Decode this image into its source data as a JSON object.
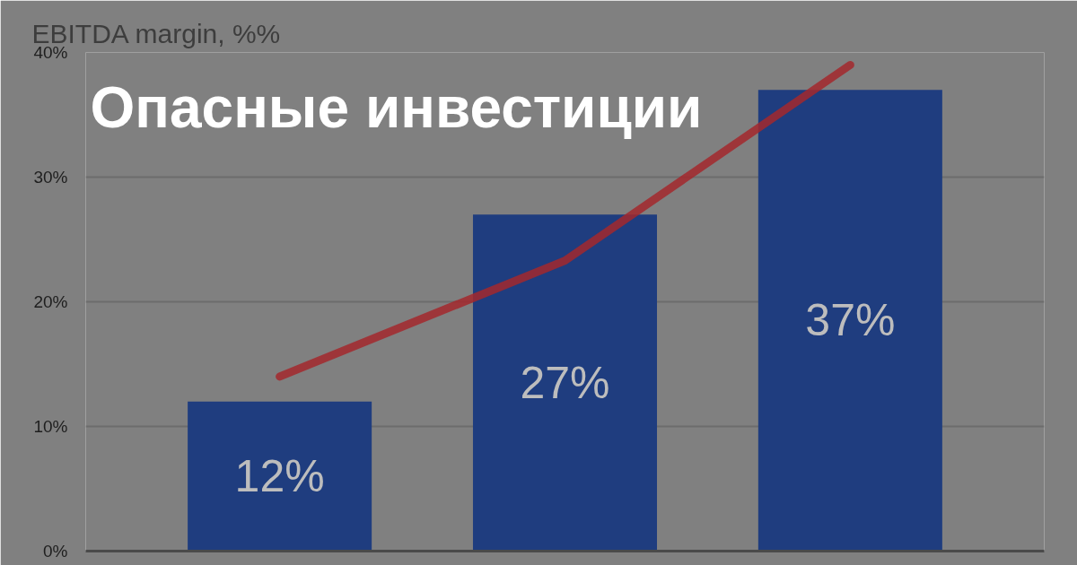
{
  "chart_data": {
    "type": "bar",
    "title": "EBITDA margin, %%",
    "annotations": [
      "Опасные инвестиции"
    ],
    "categories": [
      null,
      null,
      null
    ],
    "series": [
      {
        "color": "#1f3d7f",
        "values": [
          12,
          27,
          37
        ],
        "value_labels": [
          "12%",
          "27%",
          "37%"
        ]
      },
      {
        "type": "line",
        "color": "#a3282d",
        "values": [
          14.0,
          23.3,
          39.0
        ]
      }
    ],
    "ylim": [
      0,
      40
    ],
    "yticks": [
      {
        "value": 0,
        "label": "0%"
      },
      {
        "value": 10,
        "label": "10%"
      },
      {
        "value": 20,
        "label": "20%"
      },
      {
        "value": 30,
        "label": "30%"
      },
      {
        "value": 40,
        "label": "40%"
      }
    ],
    "grid": "y"
  }
}
